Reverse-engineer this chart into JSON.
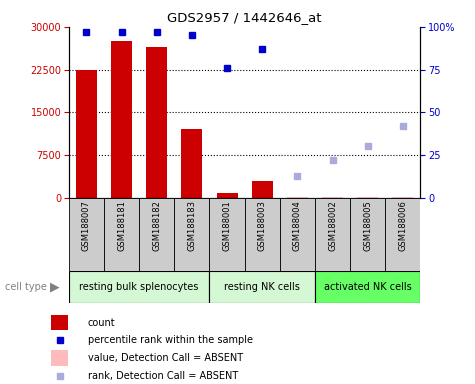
{
  "title": "GDS2957 / 1442646_at",
  "samples": [
    "GSM188007",
    "GSM188181",
    "GSM188182",
    "GSM188183",
    "GSM188001",
    "GSM188003",
    "GSM188004",
    "GSM188002",
    "GSM188005",
    "GSM188006"
  ],
  "count_values": [
    22500,
    27500,
    26500,
    12000,
    900,
    3000,
    150,
    150,
    150,
    150
  ],
  "percentile_present": [
    97,
    97,
    97,
    95,
    76,
    87,
    null,
    null,
    null,
    null
  ],
  "percentile_absent": [
    null,
    null,
    null,
    null,
    null,
    null,
    13,
    22,
    30,
    42
  ],
  "count_absent_flag": [
    false,
    false,
    false,
    false,
    false,
    false,
    true,
    true,
    true,
    true
  ],
  "cell_groups": [
    {
      "label": "resting bulk splenocytes",
      "start": 0,
      "end": 4,
      "color": "#d4f7d4"
    },
    {
      "label": "resting NK cells",
      "start": 4,
      "end": 7,
      "color": "#d4f7d4"
    },
    {
      "label": "activated NK cells",
      "start": 7,
      "end": 10,
      "color": "#66ff66"
    }
  ],
  "ylim_left": [
    0,
    30000
  ],
  "ylim_right": [
    0,
    100
  ],
  "yticks_left": [
    0,
    7500,
    15000,
    22500,
    30000
  ],
  "yticks_right": [
    0,
    25,
    50,
    75,
    100
  ],
  "ytick_labels_right": [
    "0",
    "25",
    "50",
    "75",
    "100%"
  ],
  "bar_color_present": "#cc0000",
  "bar_color_absent_value": "#ffbbbb",
  "dot_color_present": "#0000cc",
  "dot_color_absent": "#aaaadd",
  "tick_bg_color": "#cccccc",
  "background_color": "#ffffff"
}
